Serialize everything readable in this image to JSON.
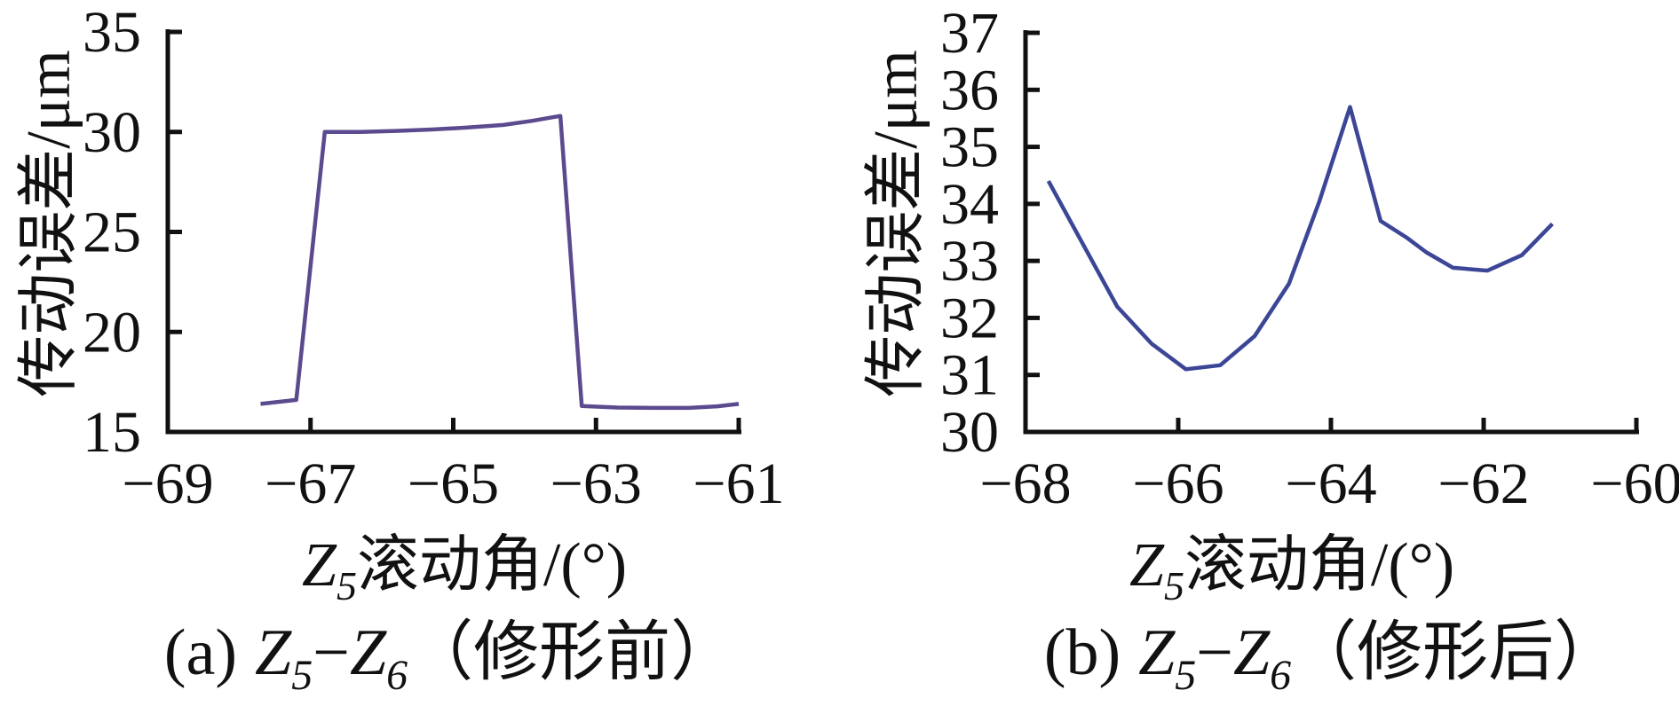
{
  "figure": {
    "background": "#ffffff",
    "axis_color": "#111111",
    "text_color": "#111111"
  },
  "chart_data": [
    {
      "type": "line",
      "id": "before-modification",
      "ylabel": "传动误差/μm",
      "xlabel": {
        "z": "Z",
        "sub": "5",
        "rest": "滚动角/(°)"
      },
      "caption": {
        "index": "(a)",
        "z": "Z",
        "sub1": "5",
        "dash": "−",
        "sub2": "6",
        "note": "（修形前）"
      },
      "xlim": [
        -69,
        -61
      ],
      "ylim": [
        15,
        35
      ],
      "xticks": [
        -69,
        -67,
        -65,
        -63,
        -61
      ],
      "yticks": [
        15,
        20,
        25,
        30,
        35
      ],
      "grid": false,
      "legend": "none",
      "line_color": "#5c4a8f",
      "x": [
        -67.7,
        -67.2,
        -66.8,
        -66.3,
        -65.8,
        -65.3,
        -64.8,
        -64.3,
        -63.9,
        -63.5,
        -63.2,
        -62.7,
        -62.2,
        -61.7,
        -61.3,
        -61.0
      ],
      "y": [
        16.4,
        16.6,
        30.0,
        30.0,
        30.05,
        30.12,
        30.22,
        30.35,
        30.55,
        30.8,
        16.3,
        16.22,
        16.2,
        16.2,
        16.28,
        16.4
      ]
    },
    {
      "type": "line",
      "id": "after-modification",
      "ylabel": "传动误差/μm",
      "xlabel": {
        "z": "Z",
        "sub": "5",
        "rest": "滚动角/(°)"
      },
      "caption": {
        "index": "(b)",
        "z": "Z",
        "sub1": "5",
        "dash": "−",
        "sub2": "6",
        "note": "（修形后）"
      },
      "xlim": [
        -68,
        -60
      ],
      "ylim": [
        30,
        37
      ],
      "xticks": [
        -68,
        -66,
        -64,
        -62,
        -60
      ],
      "yticks": [
        30,
        31,
        32,
        33,
        34,
        35,
        36,
        37
      ],
      "grid": false,
      "legend": "none",
      "line_color": "#3c4696",
      "x": [
        -67.7,
        -67.25,
        -66.8,
        -66.35,
        -65.9,
        -65.45,
        -65.0,
        -64.55,
        -64.15,
        -63.75,
        -63.35,
        -63.0,
        -62.75,
        -62.4,
        -61.95,
        -61.5,
        -61.1
      ],
      "y": [
        34.4,
        33.3,
        32.2,
        31.55,
        31.1,
        31.17,
        31.68,
        32.6,
        34.05,
        35.7,
        33.7,
        33.4,
        33.15,
        32.88,
        32.83,
        33.1,
        33.65
      ]
    }
  ]
}
